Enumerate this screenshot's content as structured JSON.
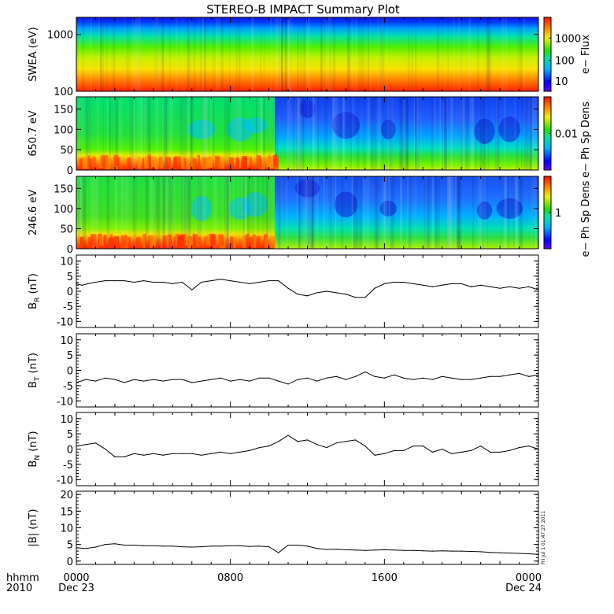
{
  "title": "STEREO-B IMPACT Summary Plot",
  "footer": {
    "time_label_line1": "hhmm",
    "time_label_line2": "2010",
    "x_ticks": [
      "0000",
      "0800",
      "1600",
      "0000"
    ],
    "x_dates": [
      "Dec 23",
      "",
      "",
      "Dec 24"
    ],
    "timestamp": "Fri Jul 1 01:47:27 2011"
  },
  "chart_data": [
    {
      "type": "heatmap",
      "id": "swea",
      "ylabel": "SWEA (eV)",
      "yscale": "log",
      "ylim": [
        100,
        2000
      ],
      "yticks": [
        100,
        1000
      ],
      "ytick_labels": [
        "100",
        "1000"
      ],
      "xlim_hours": [
        0,
        24
      ],
      "colorbar": {
        "label": "e− Flux",
        "scale": "log",
        "ticks": [
          "10",
          "100",
          "1000"
        ]
      }
    },
    {
      "type": "heatmap",
      "id": "pad650",
      "ylabel": "650.7 eV",
      "ylim": [
        0,
        180
      ],
      "yticks": [
        0,
        50,
        100,
        150
      ],
      "ytick_labels": [
        "0",
        "50",
        "100",
        "150"
      ],
      "xlim_hours": [
        0,
        24
      ],
      "colorbar": {
        "label": "e− Ph Sp Dens",
        "scale": "log",
        "ticks": [
          "0.01"
        ]
      }
    },
    {
      "type": "heatmap",
      "id": "pad246",
      "ylabel": "246.6 eV",
      "ylim": [
        0,
        180
      ],
      "yticks": [
        0,
        50,
        100,
        150
      ],
      "ytick_labels": [
        "0",
        "50",
        "100",
        "150"
      ],
      "xlim_hours": [
        0,
        24
      ],
      "colorbar": {
        "label": "e− Ph Sp Dens",
        "scale": "log",
        "ticks": [
          "1"
        ]
      }
    },
    {
      "type": "line",
      "id": "br",
      "ylabel": "B_R (nT)",
      "ylabel_main": "B",
      "ylabel_sub": "R",
      "ylabel_unit": "(nT)",
      "ylim": [
        -12,
        12
      ],
      "yticks": [
        -10,
        -5,
        0,
        5,
        10
      ],
      "x": [
        0,
        0.3,
        0.6,
        1,
        1.5,
        2,
        2.5,
        3,
        3.5,
        4,
        4.5,
        5,
        5.5,
        6,
        6.5,
        7,
        7.5,
        8,
        8.5,
        9,
        9.5,
        10,
        10.5,
        11,
        11.5,
        12,
        12.5,
        13,
        13.5,
        14,
        14.5,
        15,
        15.5,
        16,
        16.5,
        17,
        17.5,
        18,
        18.5,
        19,
        19.5,
        20,
        20.5,
        21,
        21.5,
        22,
        22.5,
        23,
        23.5,
        24
      ],
      "values": [
        2.5,
        2,
        2.5,
        3,
        3.5,
        3.5,
        3.5,
        3,
        3.5,
        3,
        3,
        2.5,
        3,
        0.5,
        3,
        3.5,
        4,
        3.5,
        3,
        2.5,
        3,
        3.5,
        3.5,
        1,
        -1,
        -1.5,
        -0.5,
        0,
        -0.5,
        -1,
        -2,
        -2,
        1,
        2.5,
        3,
        3,
        2.5,
        2,
        1.5,
        2,
        2.5,
        2.5,
        1.5,
        2,
        1.5,
        1,
        1.5,
        1,
        1.5,
        0.5
      ]
    },
    {
      "type": "line",
      "id": "bt",
      "ylabel": "B_T (nT)",
      "ylabel_main": "B",
      "ylabel_sub": "T",
      "ylabel_unit": "(nT)",
      "ylim": [
        -12,
        12
      ],
      "yticks": [
        -10,
        -5,
        0,
        5,
        10
      ],
      "x": [
        0,
        0.5,
        1,
        1.5,
        2,
        2.5,
        3,
        3.5,
        4,
        4.5,
        5,
        5.5,
        6,
        6.5,
        7,
        7.5,
        8,
        8.5,
        9,
        9.5,
        10,
        10.5,
        11,
        11.5,
        12,
        12.5,
        13,
        13.5,
        14,
        14.5,
        15,
        15.5,
        16,
        16.5,
        17,
        17.5,
        18,
        18.5,
        19,
        19.5,
        20,
        20.5,
        21,
        21.5,
        22,
        22.5,
        23,
        23.5,
        24
      ],
      "values": [
        -4,
        -3,
        -3.5,
        -2.5,
        -3,
        -4,
        -3,
        -3.5,
        -3,
        -3.5,
        -3,
        -3,
        -4,
        -3.5,
        -3,
        -2.5,
        -3.5,
        -3,
        -3.5,
        -2.5,
        -2.5,
        -3.5,
        -4.5,
        -3,
        -2.5,
        -3.5,
        -2.5,
        -2,
        -3,
        -2,
        -0.5,
        -2,
        -2.5,
        -1.5,
        -2.5,
        -3,
        -2.5,
        -3,
        -2,
        -2.5,
        -3,
        -3,
        -2.5,
        -2,
        -2,
        -1.5,
        -1,
        -2,
        -1.5
      ]
    },
    {
      "type": "line",
      "id": "bn",
      "ylabel": "B_N (nT)",
      "ylabel_main": "B",
      "ylabel_sub": "N",
      "ylabel_unit": "(nT)",
      "ylim": [
        -12,
        12
      ],
      "yticks": [
        -10,
        -5,
        0,
        5,
        10
      ],
      "x": [
        0,
        0.5,
        1,
        1.5,
        2,
        2.5,
        3,
        3.5,
        4,
        4.5,
        5,
        5.5,
        6,
        6.5,
        7,
        7.5,
        8,
        8.5,
        9,
        9.5,
        10,
        10.5,
        11,
        11.5,
        12,
        12.5,
        13,
        13.5,
        14,
        14.5,
        15,
        15.5,
        16,
        16.5,
        17,
        17.5,
        18,
        18.5,
        19,
        19.5,
        20,
        20.5,
        21,
        21.5,
        22,
        22.5,
        23,
        23.5,
        24
      ],
      "values": [
        1,
        1.5,
        2,
        0,
        -2.5,
        -2.5,
        -1.5,
        -2,
        -1.5,
        -2,
        -1.5,
        -1.5,
        -1.5,
        -2,
        -1.5,
        -1,
        -1.5,
        -1,
        -0.5,
        0.5,
        1,
        2.5,
        4.5,
        2.5,
        3,
        1.5,
        0.5,
        2,
        2.5,
        3,
        1,
        -2,
        -1.5,
        -0.5,
        -0.5,
        1,
        1,
        -1,
        0,
        -1.5,
        -1,
        -0.5,
        1,
        -1,
        -1,
        -0.5,
        0.5,
        1,
        0
      ]
    },
    {
      "type": "line",
      "id": "bmag",
      "ylabel": "|B| (nT)",
      "ylabel_main": "|B|",
      "ylabel_sub": "",
      "ylabel_unit": "(nT)",
      "ylim": [
        -1,
        21
      ],
      "yticks": [
        0,
        5,
        10,
        15,
        20
      ],
      "x": [
        0,
        0.5,
        1,
        1.5,
        2,
        2.5,
        3,
        3.5,
        4,
        4.5,
        5,
        5.5,
        6,
        6.5,
        7,
        7.5,
        8,
        8.5,
        9,
        9.5,
        10,
        10.5,
        11,
        11.5,
        12,
        12.5,
        13,
        13.5,
        14,
        14.5,
        15,
        15.5,
        16,
        16.5,
        17,
        17.5,
        18,
        18.5,
        19,
        19.5,
        20,
        20.5,
        21,
        21.5,
        22,
        22.5,
        23,
        23.5,
        24
      ],
      "values": [
        4,
        3.8,
        4.2,
        5,
        5.2,
        4.8,
        4.8,
        4.6,
        4.6,
        4.5,
        4.5,
        4.3,
        4.2,
        4.3,
        4.5,
        4.5,
        4.6,
        4.6,
        4.4,
        4.5,
        4.3,
        2.5,
        4.8,
        4.8,
        4.5,
        3.8,
        3.5,
        3.6,
        3.4,
        3.3,
        3.2,
        3.3,
        3.4,
        3.3,
        3.2,
        3.2,
        3.1,
        3,
        3.1,
        3,
        3,
        2.9,
        2.8,
        2.6,
        2.5,
        2.4,
        2.3,
        2.2,
        2
      ]
    }
  ]
}
